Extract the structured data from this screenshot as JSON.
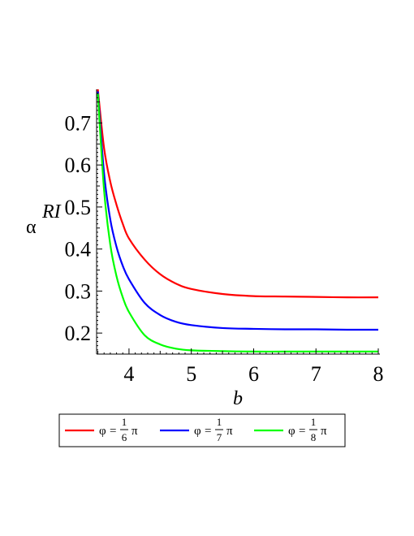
{
  "chart_data": {
    "type": "line",
    "xlabel": "b",
    "ylabel": "α",
    "ylabel_superscript": "RI",
    "xlim": [
      3.48,
      8.0
    ],
    "ylim": [
      0.15,
      0.78
    ],
    "xticks": [
      4,
      5,
      6,
      7,
      8
    ],
    "xtick_labels": [
      "4",
      "5",
      "6",
      "7",
      "8"
    ],
    "yticks": [
      0.2,
      0.3,
      0.4,
      0.5,
      0.6,
      0.7
    ],
    "ytick_labels": [
      "0.2",
      "0.3",
      "0.4",
      "0.5",
      "0.6",
      "0.7"
    ],
    "legend_position": "bottom",
    "x": [
      3.5,
      3.6,
      3.7,
      3.8,
      3.9,
      4.0,
      4.25,
      4.5,
      4.75,
      5.0,
      5.5,
      6.0,
      6.5,
      7.0,
      7.5,
      8.0
    ],
    "series": [
      {
        "name": "φ = 1/6 π",
        "legend_symbol": "φ",
        "legend_num": "1",
        "legend_den": "6",
        "legend_pi": "π",
        "color": "#ff0000",
        "values": [
          0.78,
          0.64,
          0.56,
          0.505,
          0.46,
          0.425,
          0.375,
          0.34,
          0.318,
          0.305,
          0.293,
          0.288,
          0.287,
          0.286,
          0.285,
          0.285
        ]
      },
      {
        "name": "φ = 1/7 π",
        "legend_symbol": "φ",
        "legend_num": "1",
        "legend_den": "7",
        "legend_pi": "π",
        "color": "#0000ff",
        "values": [
          0.775,
          0.58,
          0.47,
          0.405,
          0.36,
          0.328,
          0.272,
          0.243,
          0.227,
          0.219,
          0.212,
          0.21,
          0.209,
          0.209,
          0.208,
          0.208
        ]
      },
      {
        "name": "φ = 1/8 π",
        "legend_symbol": "φ",
        "legend_num": "1",
        "legend_den": "8",
        "legend_pi": "π",
        "color": "#00ff00",
        "values": [
          0.77,
          0.54,
          0.41,
          0.335,
          0.285,
          0.25,
          0.195,
          0.173,
          0.163,
          0.159,
          0.157,
          0.156,
          0.156,
          0.156,
          0.156,
          0.156
        ]
      }
    ]
  }
}
